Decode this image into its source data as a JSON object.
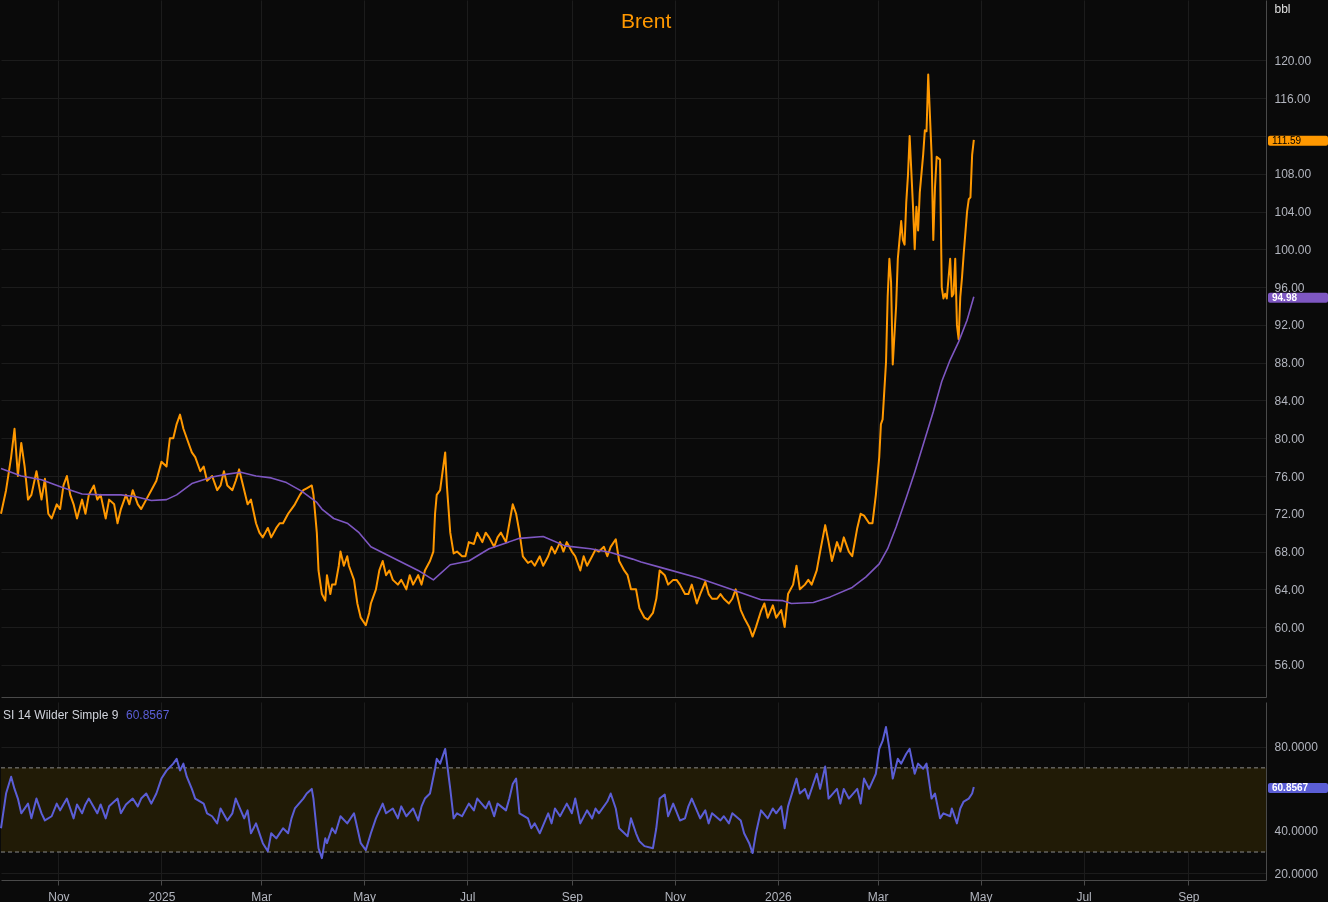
{
  "chart_data": [
    {
      "type": "line",
      "ylabel": "bbl",
      "tick_labels": "y",
      "grid": true,
      "x": [
        "2024-09-28",
        "2024-10-01",
        "2024-10-04",
        "2024-10-06",
        "2024-10-08",
        "2024-10-10",
        "2024-10-12",
        "2024-10-14",
        "2024-10-16",
        "2024-10-19",
        "2024-10-22",
        "2024-10-24",
        "2024-10-26",
        "2024-10-28",
        "2024-10-31",
        "2024-11-02",
        "2024-11-04",
        "2024-11-06",
        "2024-11-08",
        "2024-11-10",
        "2024-11-12",
        "2024-11-15",
        "2024-11-17",
        "2024-11-19",
        "2024-11-22",
        "2024-11-24",
        "2024-11-26",
        "2024-11-29",
        "2024-12-01",
        "2024-12-04",
        "2024-12-06",
        "2024-12-08",
        "2024-12-11",
        "2024-12-13",
        "2024-12-15",
        "2024-12-18",
        "2024-12-20",
        "2024-12-23",
        "2024-12-26",
        "2024-12-29",
        "2025-01-01",
        "2025-01-04",
        "2025-01-06",
        "2025-01-08",
        "2025-01-10",
        "2025-01-12",
        "2025-01-14",
        "2025-01-16",
        "2025-01-19",
        "2025-01-21",
        "2025-01-24",
        "2025-01-26",
        "2025-01-28",
        "2025-01-31",
        "2025-02-03",
        "2025-02-05",
        "2025-02-07",
        "2025-02-09",
        "2025-02-12",
        "2025-02-14",
        "2025-02-16",
        "2025-02-19",
        "2025-02-21",
        "2025-02-23",
        "2025-02-26",
        "2025-02-28",
        "2025-03-02",
        "2025-03-05",
        "2025-03-07",
        "2025-03-10",
        "2025-03-12",
        "2025-03-14",
        "2025-03-17",
        "2025-03-19",
        "2025-03-21",
        "2025-03-24",
        "2025-03-26",
        "2025-03-28",
        "2025-03-31",
        "2025-04-01",
        "2025-04-03",
        "2025-04-04",
        "2025-04-06",
        "2025-04-08",
        "2025-04-09",
        "2025-04-11",
        "2025-04-12",
        "2025-04-14",
        "2025-04-16",
        "2025-04-17",
        "2025-04-19",
        "2025-04-21",
        "2025-04-22",
        "2025-04-25",
        "2025-04-27",
        "2025-04-29",
        "2025-05-02",
        "2025-05-04",
        "2025-05-05",
        "2025-05-08",
        "2025-05-10",
        "2025-05-12",
        "2025-05-14",
        "2025-05-16",
        "2025-05-18",
        "2025-05-21",
        "2025-05-23",
        "2025-05-26",
        "2025-05-28",
        "2025-05-30",
        "2025-06-02",
        "2025-06-04",
        "2025-06-06",
        "2025-06-09",
        "2025-06-11",
        "2025-06-12",
        "2025-06-13",
        "2025-06-15",
        "2025-06-18",
        "2025-06-19",
        "2025-06-21",
        "2025-06-23",
        "2025-06-25",
        "2025-06-28",
        "2025-06-30",
        "2025-07-02",
        "2025-07-05",
        "2025-07-07",
        "2025-07-10",
        "2025-07-12",
        "2025-07-14",
        "2025-07-17",
        "2025-07-19",
        "2025-07-21",
        "2025-07-24",
        "2025-07-26",
        "2025-07-28",
        "2025-07-30",
        "2025-08-01",
        "2025-08-03",
        "2025-08-06",
        "2025-08-08",
        "2025-08-10",
        "2025-08-13",
        "2025-08-15",
        "2025-08-18",
        "2025-08-20",
        "2025-08-22",
        "2025-08-25",
        "2025-08-27",
        "2025-08-29",
        "2025-09-01",
        "2025-09-03",
        "2025-09-06",
        "2025-09-08",
        "2025-09-10",
        "2025-09-13",
        "2025-09-15",
        "2025-09-17",
        "2025-09-20",
        "2025-09-22",
        "2025-09-24",
        "2025-09-27",
        "2025-09-29",
        "2025-10-02",
        "2025-10-04",
        "2025-10-06",
        "2025-10-09",
        "2025-10-11",
        "2025-10-14",
        "2025-10-16",
        "2025-10-19",
        "2025-10-21",
        "2025-10-23",
        "2025-10-26",
        "2025-10-28",
        "2025-10-31",
        "2025-11-02",
        "2025-11-04",
        "2025-11-07",
        "2025-11-09",
        "2025-11-11",
        "2025-11-14",
        "2025-11-16",
        "2025-11-19",
        "2025-11-21",
        "2025-11-23",
        "2025-11-26",
        "2025-11-28",
        "2025-11-30",
        "2025-12-03",
        "2025-12-05",
        "2025-12-07",
        "2025-12-10",
        "2025-12-12",
        "2025-12-15",
        "2025-12-17",
        "2025-12-19",
        "2025-12-22",
        "2025-12-24",
        "2025-12-26",
        "2025-12-29",
        "2025-12-31",
        "2026-01-03",
        "2026-01-05",
        "2026-01-07",
        "2026-01-10",
        "2026-01-12",
        "2026-01-14",
        "2026-01-17",
        "2026-01-19",
        "2026-01-21",
        "2026-01-24",
        "2026-01-26",
        "2026-01-29",
        "2026-01-31",
        "2026-02-02",
        "2026-02-05",
        "2026-02-07",
        "2026-02-09",
        "2026-02-12",
        "2026-02-14",
        "2026-02-17",
        "2026-02-19",
        "2026-02-21",
        "2026-02-24",
        "2026-02-26",
        "2026-02-28",
        "2026-03-02",
        "2026-03-03",
        "2026-03-04",
        "2026-03-06",
        "2026-03-07",
        "2026-03-08",
        "2026-03-09",
        "2026-03-10",
        "2026-03-12",
        "2026-03-13",
        "2026-03-14",
        "2026-03-15",
        "2026-03-16",
        "2026-03-17",
        "2026-03-18",
        "2026-03-19",
        "2026-03-20",
        "2026-03-22",
        "2026-03-23",
        "2026-03-24",
        "2026-03-25",
        "2026-03-26",
        "2026-03-28",
        "2026-03-29",
        "2026-03-30",
        "2026-03-31",
        "2026-04-02",
        "2026-04-03",
        "2026-04-04",
        "2026-04-05",
        "2026-04-07",
        "2026-04-08",
        "2026-04-09",
        "2026-04-10",
        "2026-04-11",
        "2026-04-13",
        "2026-04-14",
        "2026-04-15",
        "2026-04-16",
        "2026-04-17",
        "2026-04-18",
        "2026-04-19",
        "2026-04-20",
        "2026-04-21",
        "2026-04-23",
        "2026-04-24",
        "2026-04-25",
        "2026-04-26",
        "2026-04-27"
      ],
      "series": [
        {
          "name": "Brent",
          "color": "#ff9800",
          "values": [
            72,
            74.5,
            78,
            81,
            76,
            79.5,
            77,
            73.5,
            74,
            76.5,
            73.5,
            75.7,
            72,
            71.5,
            73,
            72.5,
            75,
            76,
            74,
            73,
            71.5,
            73.5,
            72,
            74,
            75,
            73.5,
            74,
            71.5,
            73.5,
            73,
            71,
            72.5,
            74,
            73,
            74.5,
            73,
            72.5,
            73.5,
            74.5,
            75.5,
            77.5,
            77,
            80,
            80,
            81.5,
            82.5,
            81,
            80,
            78.5,
            78,
            76.5,
            77,
            75.5,
            76,
            74.5,
            75,
            76.5,
            75,
            74.5,
            75.5,
            76.7,
            74.5,
            73,
            73.5,
            71,
            70,
            69.5,
            70.5,
            69.5,
            70.5,
            71,
            71,
            72,
            72.5,
            73,
            74,
            74.5,
            74.7,
            75,
            74,
            70,
            66,
            63.5,
            62.8,
            65.5,
            63.5,
            64.5,
            64.5,
            66.5,
            68,
            66.5,
            67.5,
            66.5,
            65,
            62.5,
            61,
            60.2,
            61.5,
            62.5,
            64,
            66,
            67,
            65.5,
            66,
            65,
            64.5,
            65,
            64,
            65.5,
            64.5,
            65.5,
            64.5,
            66,
            67,
            68,
            72,
            74,
            74.5,
            78.5,
            75,
            70,
            67.8,
            68,
            67.5,
            67.5,
            69,
            68.8,
            70,
            69,
            70,
            69.5,
            68.5,
            69.5,
            70,
            69,
            71,
            73,
            72,
            70,
            67.5,
            66.8,
            67,
            66.5,
            67.5,
            66.5,
            67.5,
            68.5,
            67.8,
            69,
            68,
            69,
            68,
            67.5,
            66,
            67.5,
            66.5,
            67.5,
            68.2,
            68,
            68.5,
            67.5,
            68.5,
            69.3,
            67,
            66,
            65.5,
            64,
            64,
            62,
            61,
            60.8,
            61.5,
            63,
            66,
            65.5,
            64.5,
            65,
            65,
            64.5,
            63.5,
            63.5,
            64.5,
            62.5,
            63.5,
            64.8,
            63.5,
            63,
            63,
            63.5,
            63,
            62.5,
            63,
            64,
            61.8,
            61,
            60,
            59,
            60,
            61.7,
            62.5,
            61,
            62.3,
            61,
            61.8,
            60,
            63.5,
            64.5,
            66.5,
            64,
            64.5,
            65,
            64.5,
            66,
            68,
            70.8,
            69,
            67,
            69,
            68,
            69.5,
            68,
            67.5,
            70.5,
            72,
            71.8,
            71,
            71,
            74,
            78,
            81.5,
            82,
            88,
            95,
            99,
            96.5,
            87.8,
            94,
            99,
            101,
            103,
            101,
            100.5,
            105,
            107.8,
            112,
            104.5,
            100,
            104.5,
            102,
            106,
            110,
            112.6,
            112.5,
            118.5,
            110,
            101,
            106.5,
            109.8,
            109.5,
            96,
            94.8,
            95.3,
            94.8,
            99,
            95,
            95.3,
            99,
            92,
            90.5,
            95,
            97,
            99.5,
            104,
            105.3,
            105.5,
            110,
            111.59
          ]
        },
        {
          "color": "#7e57c2",
          "x": [
            "2024-09-28",
            "2024-10-04",
            "2024-10-10",
            "2024-10-22",
            "2024-11-03",
            "2024-11-15",
            "2024-11-27",
            "2024-12-08",
            "2024-12-17",
            "2024-12-26",
            "2025-01-04",
            "2025-01-10",
            "2025-01-19",
            "2025-01-31",
            "2025-02-09",
            "2025-02-17",
            "2025-02-26",
            "2025-03-07",
            "2025-03-16",
            "2025-03-25",
            "2025-04-03",
            "2025-04-06",
            "2025-04-13",
            "2025-04-21",
            "2025-04-28",
            "2025-05-05",
            "2025-05-15",
            "2025-06-02",
            "2025-06-11",
            "2025-06-21",
            "2025-07-02",
            "2025-07-14",
            "2025-08-01",
            "2025-08-15",
            "2025-08-28",
            "2025-09-12",
            "2025-09-24",
            "2025-10-07",
            "2025-10-12",
            "2025-10-24",
            "2025-11-15",
            "2025-12-03",
            "2025-12-22",
            "2026-01-04",
            "2026-01-09",
            "2026-01-22",
            "2026-02-01",
            "2026-02-14",
            "2026-02-22",
            "2026-03-02",
            "2026-03-07",
            "2026-03-12",
            "2026-03-18",
            "2026-03-23",
            "2026-03-28",
            "2026-04-03",
            "2026-04-08",
            "2026-04-13",
            "2026-04-18",
            "2026-04-23",
            "2026-04-27"
          ],
          "values": [
            76.8,
            76.4,
            76,
            75.6,
            74.8,
            74.1,
            74,
            74,
            73.8,
            73.4,
            73.5,
            74,
            75.2,
            75.9,
            76.2,
            76.4,
            76,
            75.8,
            75.3,
            74.4,
            73.2,
            72.5,
            71.5,
            71,
            70,
            68.5,
            67.6,
            66,
            65,
            66.6,
            67,
            68.3,
            69.4,
            69.6,
            68.6,
            68.3,
            67.9,
            67.2,
            66.9,
            66.3,
            65.2,
            64.1,
            62.9,
            62.8,
            62.5,
            62.6,
            63.2,
            64.2,
            65.3,
            66.7,
            68.3,
            70.6,
            73.7,
            76.4,
            79.3,
            82.8,
            86,
            88.3,
            90.2,
            92.5,
            94.98
          ]
        }
      ],
      "xlim": [
        "2024-09-28",
        "2026-10-17"
      ],
      "xticks": [
        {
          "value": "2024-11-01",
          "label": null
        },
        {
          "value": "2025-01-01",
          "label": null
        },
        {
          "value": "2025-03-01",
          "label": null
        },
        {
          "value": "2025-05-01",
          "label": null
        },
        {
          "value": "2025-07-01",
          "label": null
        },
        {
          "value": "2025-09-01",
          "label": null
        },
        {
          "value": "2025-11-01",
          "label": null
        },
        {
          "value": "2026-01-01",
          "label": null
        },
        {
          "value": "2026-03-01",
          "label": null
        },
        {
          "value": "2026-05-01",
          "label": null
        },
        {
          "value": "2026-07-01",
          "label": null
        },
        {
          "value": "2026-09-01",
          "label": null
        }
      ],
      "ylim": [
        52.6,
        126.4
      ],
      "yticks": [
        {
          "value": 56,
          "label": "56.00"
        },
        {
          "value": 60,
          "label": "60.00"
        },
        {
          "value": 64,
          "label": "64.00"
        },
        {
          "value": 68,
          "label": "68.00"
        },
        {
          "value": 72,
          "label": "72.00"
        },
        {
          "value": 76,
          "label": "76.00"
        },
        {
          "value": 80,
          "label": "80.00"
        },
        {
          "value": 84,
          "label": "84.00"
        },
        {
          "value": 88,
          "label": "88.00"
        },
        {
          "value": 92,
          "label": "92.00"
        },
        {
          "value": 96,
          "label": "96.00"
        },
        {
          "value": 100,
          "label": "100.00"
        },
        {
          "value": 104,
          "label": "104.00"
        },
        {
          "value": 108,
          "label": "108.00"
        },
        {
          "value": 112,
          "label": null
        },
        {
          "value": 116,
          "label": "116.00"
        },
        {
          "value": 120,
          "label": "120.00"
        }
      ],
      "annotations": [
        "111.59",
        "94.98"
      ]
    },
    {
      "type": "line",
      "title": "SI 14 Wilder Simple 9",
      "subtitle": "60.8567",
      "grid": true,
      "x": [
        "2024-09-28",
        "2024-10-01",
        "2024-10-04",
        "2024-10-06",
        "2024-10-08",
        "2024-10-10",
        "2024-10-14",
        "2024-10-16",
        "2024-10-19",
        "2024-10-22",
        "2024-10-24",
        "2024-10-28",
        "2024-10-31",
        "2024-11-02",
        "2024-11-06",
        "2024-11-10",
        "2024-11-12",
        "2024-11-15",
        "2024-11-17",
        "2024-11-19",
        "2024-11-24",
        "2024-11-26",
        "2024-11-29",
        "2024-12-01",
        "2024-12-06",
        "2024-12-08",
        "2024-12-11",
        "2024-12-15",
        "2024-12-18",
        "2024-12-20",
        "2024-12-23",
        "2024-12-26",
        "2024-12-29",
        "2025-01-01",
        "2025-01-04",
        "2025-01-08",
        "2025-01-10",
        "2025-01-12",
        "2025-01-14",
        "2025-01-16",
        "2025-01-19",
        "2025-01-21",
        "2025-01-26",
        "2025-01-28",
        "2025-01-31",
        "2025-02-03",
        "2025-02-05",
        "2025-02-09",
        "2025-02-12",
        "2025-02-14",
        "2025-02-19",
        "2025-02-21",
        "2025-02-23",
        "2025-02-26",
        "2025-03-02",
        "2025-03-05",
        "2025-03-07",
        "2025-03-10",
        "2025-03-14",
        "2025-03-17",
        "2025-03-19",
        "2025-03-21",
        "2025-03-26",
        "2025-03-28",
        "2025-03-31",
        "2025-04-01",
        "2025-04-04",
        "2025-04-06",
        "2025-04-08",
        "2025-04-09",
        "2025-04-12",
        "2025-04-14",
        "2025-04-17",
        "2025-04-21",
        "2025-04-25",
        "2025-04-27",
        "2025-04-29",
        "2025-05-02",
        "2025-05-05",
        "2025-05-08",
        "2025-05-12",
        "2025-05-14",
        "2025-05-18",
        "2025-05-21",
        "2025-05-23",
        "2025-05-26",
        "2025-05-30",
        "2025-06-02",
        "2025-06-04",
        "2025-06-06",
        "2025-06-09",
        "2025-06-12",
        "2025-06-13",
        "2025-06-15",
        "2025-06-18",
        "2025-06-21",
        "2025-06-23",
        "2025-06-25",
        "2025-06-28",
        "2025-07-02",
        "2025-07-05",
        "2025-07-07",
        "2025-07-12",
        "2025-07-14",
        "2025-07-17",
        "2025-07-19",
        "2025-07-24",
        "2025-07-26",
        "2025-07-28",
        "2025-07-30",
        "2025-08-01",
        "2025-08-06",
        "2025-08-08",
        "2025-08-10",
        "2025-08-13",
        "2025-08-18",
        "2025-08-20",
        "2025-08-22",
        "2025-08-25",
        "2025-08-29",
        "2025-09-01",
        "2025-09-03",
        "2025-09-06",
        "2025-09-10",
        "2025-09-13",
        "2025-09-15",
        "2025-09-17",
        "2025-09-22",
        "2025-09-24",
        "2025-09-27",
        "2025-09-29",
        "2025-10-04",
        "2025-10-06",
        "2025-10-09",
        "2025-10-11",
        "2025-10-14",
        "2025-10-19",
        "2025-10-21",
        "2025-10-23",
        "2025-10-26",
        "2025-10-28",
        "2025-10-31",
        "2025-11-04",
        "2025-11-07",
        "2025-11-09",
        "2025-11-11",
        "2025-11-16",
        "2025-11-19",
        "2025-11-21",
        "2025-11-23",
        "2025-11-28",
        "2025-11-30",
        "2025-12-03",
        "2025-12-05",
        "2025-12-10",
        "2025-12-12",
        "2025-12-15",
        "2025-12-17",
        "2025-12-19",
        "2025-12-22",
        "2025-12-26",
        "2025-12-29",
        "2025-12-31",
        "2026-01-03",
        "2026-01-05",
        "2026-01-07",
        "2026-01-12",
        "2026-01-14",
        "2026-01-17",
        "2026-01-19",
        "2026-01-24",
        "2026-01-26",
        "2026-01-29",
        "2026-01-31",
        "2026-02-05",
        "2026-02-07",
        "2026-02-09",
        "2026-02-12",
        "2026-02-17",
        "2026-02-19",
        "2026-02-21",
        "2026-02-24",
        "2026-02-28",
        "2026-03-02",
        "2026-03-04",
        "2026-03-06",
        "2026-03-08",
        "2026-03-10",
        "2026-03-13",
        "2026-03-15",
        "2026-03-18",
        "2026-03-20",
        "2026-03-23",
        "2026-03-25",
        "2026-03-28",
        "2026-03-30",
        "2026-04-02",
        "2026-04-04",
        "2026-04-07",
        "2026-04-09",
        "2026-04-13",
        "2026-04-14",
        "2026-04-17",
        "2026-04-19",
        "2026-04-21",
        "2026-04-24",
        "2026-04-26",
        "2026-04-27"
      ],
      "series": [
        {
          "color": "#5b5ed6",
          "values": [
            41.3,
            57.8,
            65.8,
            60,
            55.4,
            48.4,
            53,
            46,
            55.4,
            48.4,
            45,
            47,
            53,
            49.8,
            55.4,
            46,
            52.6,
            48.4,
            52.6,
            55.4,
            48.4,
            52.6,
            46,
            51.7,
            55.4,
            48.4,
            52.6,
            55.4,
            51.7,
            55.4,
            57.8,
            53,
            57.8,
            64.9,
            68.7,
            72,
            74.3,
            68.7,
            72,
            65.8,
            60,
            55.4,
            53,
            48.4,
            47,
            43.6,
            50.7,
            45,
            48.4,
            55.4,
            46,
            49.8,
            38.9,
            43.6,
            34.2,
            30.4,
            38.9,
            36.5,
            41.3,
            38.9,
            46,
            50.7,
            55.4,
            57.8,
            60,
            55.4,
            31.8,
            27.1,
            36.5,
            34.2,
            41.3,
            38.9,
            47,
            43.6,
            48.4,
            41.3,
            34.2,
            30.9,
            38.9,
            46,
            53,
            48.4,
            50.7,
            46,
            51.7,
            47,
            50.7,
            45,
            51.7,
            55.4,
            57.8,
            69.6,
            74.3,
            72,
            79,
            60,
            46,
            48.4,
            47,
            53,
            49.8,
            55.4,
            50.7,
            54,
            47,
            53,
            49.8,
            55.4,
            62.3,
            64.9,
            48.4,
            46,
            41.3,
            43.6,
            38.9,
            48.4,
            43.6,
            50.7,
            47,
            53,
            48.4,
            55.4,
            43.6,
            49.8,
            46,
            50.7,
            48.4,
            54,
            57.8,
            50.7,
            41.3,
            37.5,
            46,
            38.9,
            35.1,
            32.8,
            31.8,
            41.3,
            55.4,
            57.3,
            47,
            53,
            45,
            46,
            51.7,
            55.4,
            46,
            49.8,
            43.6,
            48.4,
            45,
            47,
            43.6,
            48.4,
            45,
            38.9,
            34.2,
            29.5,
            38.9,
            49.8,
            46,
            50.7,
            48.4,
            51.7,
            41.3,
            51.7,
            64.9,
            57.8,
            60,
            55.4,
            67.2,
            60,
            70.6,
            55.4,
            60,
            53,
            60,
            55.4,
            60,
            53,
            64.9,
            60,
            67.2,
            79,
            82.8,
            89.4,
            79,
            64.9,
            74.3,
            72,
            76.7,
            79,
            67.2,
            72,
            69.6,
            72,
            55.4,
            57.8,
            46,
            48.4,
            47,
            50.7,
            43.6,
            50.7,
            54,
            55.4,
            57.8,
            60.8567
          ]
        }
      ],
      "xlim": [
        "2024-09-28",
        "2026-10-17"
      ],
      "xticks": [
        {
          "value": "2024-11-01",
          "label": "Nov"
        },
        {
          "value": "2025-01-01",
          "label": "2025"
        },
        {
          "value": "2025-03-01",
          "label": "Mar"
        },
        {
          "value": "2025-05-01",
          "label": "May"
        },
        {
          "value": "2025-07-01",
          "label": "Jul"
        },
        {
          "value": "2025-09-01",
          "label": "Sep"
        },
        {
          "value": "2025-11-01",
          "label": "Nov"
        },
        {
          "value": "2026-01-01",
          "label": "2026"
        },
        {
          "value": "2026-03-01",
          "label": "Mar"
        },
        {
          "value": "2026-05-01",
          "label": "May"
        },
        {
          "value": "2026-07-01",
          "label": "Jul"
        },
        {
          "value": "2026-09-01",
          "label": "Sep"
        }
      ],
      "ylim": [
        16.7,
        101.3
      ],
      "yticks": [
        {
          "value": 20,
          "label": "20.0000"
        },
        {
          "value": 40,
          "label": "40.0000"
        },
        {
          "value": 80,
          "label": "80.0000"
        }
      ],
      "bands": [
        {
          "axis": "y",
          "from": 30,
          "to": 70,
          "color": "#211b06"
        }
      ],
      "ref_lines": [
        {
          "axis": "y",
          "value": 70,
          "line_style": "dashed",
          "color": "#8a8a8a"
        },
        {
          "axis": "y",
          "value": 30,
          "line_style": "dashed",
          "color": "#8a8a8a"
        }
      ],
      "annotations": [
        "60.8567"
      ]
    }
  ]
}
